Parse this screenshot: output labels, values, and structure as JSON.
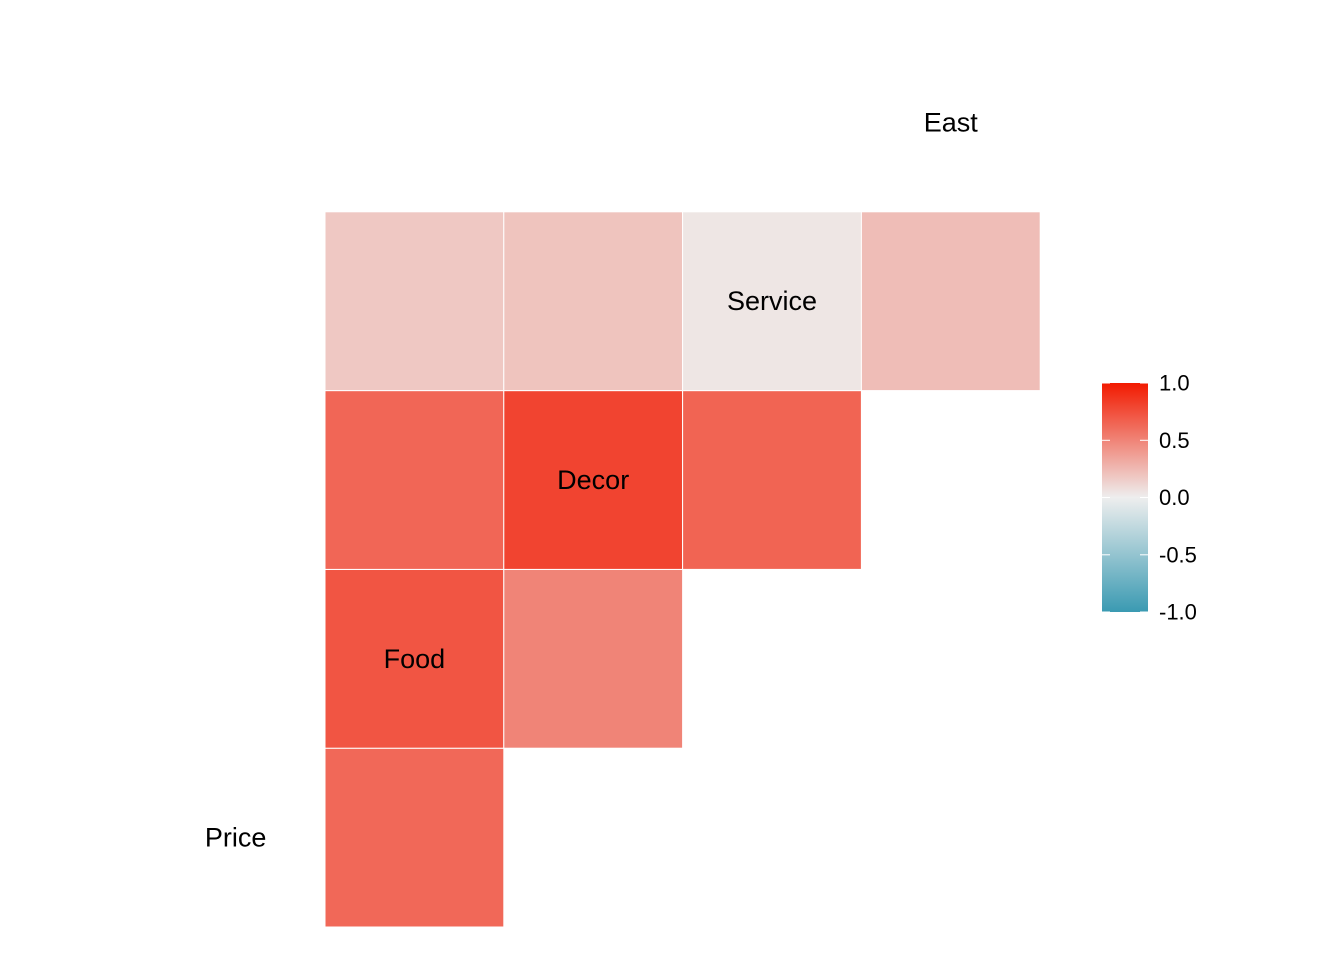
{
  "chart_data": {
    "type": "heatmap",
    "variables": [
      "Price",
      "Food",
      "Decor",
      "Service",
      "East"
    ],
    "cells": [
      {
        "row": "Food",
        "col": "Price",
        "value": 0.63
      },
      {
        "row": "Decor",
        "col": "Price",
        "value": 0.72
      },
      {
        "row": "Service",
        "col": "Price",
        "value": 0.64
      },
      {
        "row": "East",
        "col": "Price",
        "value": 0.18
      },
      {
        "row": "Decor",
        "col": "Food",
        "value": 0.5
      },
      {
        "row": "Service",
        "col": "Food",
        "value": 0.8
      },
      {
        "row": "East",
        "col": "Food",
        "value": 0.2
      },
      {
        "row": "Service",
        "col": "Decor",
        "value": 0.65
      },
      {
        "row": "East",
        "col": "Decor",
        "value": 0.04
      },
      {
        "row": "East",
        "col": "Service",
        "value": 0.23
      }
    ],
    "scale": {
      "min": -1.0,
      "max": 1.0,
      "low_color": "#3a9ab2",
      "mid_color": "#eeeeee",
      "high_color": "#f21a00"
    },
    "legend": {
      "placement": "right",
      "ticks": [
        "1.0",
        "0.5",
        "0.0",
        "-0.5",
        "-1.0"
      ],
      "tick_values": [
        1.0,
        0.5,
        0.0,
        -0.5,
        -1.0
      ]
    }
  }
}
